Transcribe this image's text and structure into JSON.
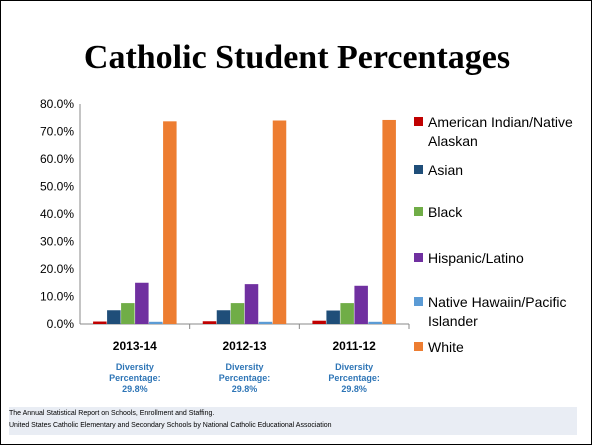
{
  "slide": {
    "title": "Catholic Student Percentages",
    "footnote_line1": "The Annual Statistical Report on Schools, Enrollment and Staffing.",
    "footnote_line2": "United States Catholic Elementary and Secondary Schools by National Catholic Educational Association"
  },
  "chart_data": {
    "type": "bar",
    "categories": [
      "2013-14",
      "2012-13",
      "2011-12"
    ],
    "category_notes": [
      [
        "Diversity",
        "Percentage:",
        "29.8%"
      ],
      [
        "Diversity",
        "Percentage:",
        "29.8%"
      ],
      [
        "Diversity",
        "Percentage:",
        "29.8%"
      ]
    ],
    "series": [
      {
        "name": "American Indian/Native Alaskan",
        "color": "#c00000",
        "values": [
          0.9,
          1.0,
          1.2
        ]
      },
      {
        "name": "Asian",
        "color": "#1f4e79",
        "values": [
          5.0,
          5.0,
          4.9
        ]
      },
      {
        "name": "Black",
        "color": "#70ad47",
        "values": [
          7.6,
          7.6,
          7.6
        ]
      },
      {
        "name": "Hispanic/Latino",
        "color": "#7030a0",
        "values": [
          15.0,
          14.5,
          13.9
        ]
      },
      {
        "name": "Native Hawaiin/Pacific Islander",
        "color": "#5b9bd5",
        "values": [
          0.8,
          0.8,
          0.8
        ]
      },
      {
        "name": "White",
        "color": "#ed7d31",
        "values": [
          73.7,
          74.0,
          74.2
        ]
      }
    ],
    "ylim": [
      0,
      80
    ],
    "yticks": [
      "0.0%",
      "10.0%",
      "20.0%",
      "30.0%",
      "40.0%",
      "50.0%",
      "60.0%",
      "70.0%",
      "80.0%"
    ],
    "grid": false,
    "legend_position": "right",
    "note_color": "#2e75b6"
  }
}
